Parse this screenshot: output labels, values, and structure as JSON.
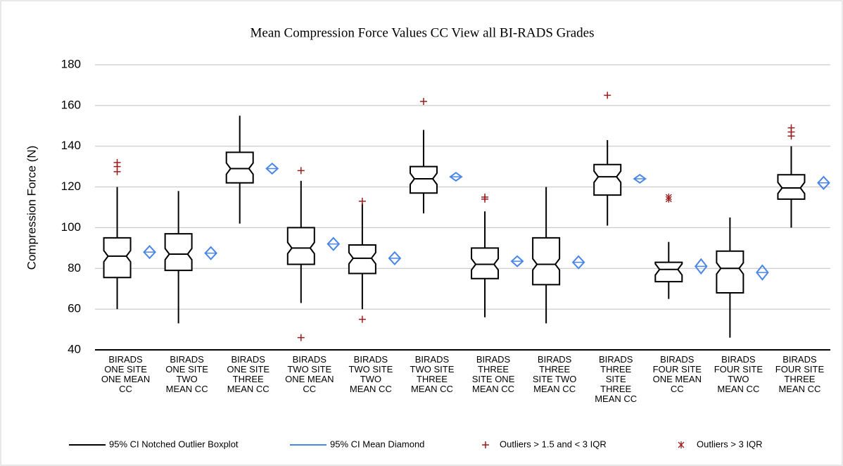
{
  "chart_data": {
    "type": "boxplot",
    "title": "Mean Compression Force Values CC View all BI-RADS Grades",
    "y_label": "Compression Force (N)",
    "categories": [
      "BIRADS ONE SITE ONE MEAN CC",
      "BIRADS ONE SITE TWO MEAN CC",
      "BIRADS ONE SITE THREE MEAN CC",
      "BIRADS TWO SITE ONE MEAN CC",
      "BIRADS TWO SITE TWO MEAN CC",
      "BIRADS TWO SITE THREE MEAN CC",
      "BIRADS THREE SITE ONE MEAN CC",
      "BIRADS THREE SITE TWO MEAN CC",
      "BIRADS THREE SITE THREE MEAN CC",
      "BIRADS FOUR SITE ONE MEAN CC",
      "BIRADS FOUR SITE TWO MEAN CC",
      "BIRADS FOUR SITE THREE MEAN CC"
    ],
    "boxes": [
      {
        "whisker_low": 60,
        "q1": 75.5,
        "median": 86,
        "q3": 95,
        "whisker_high": 120,
        "mean": 88,
        "mean_low": 85,
        "mean_high": 91,
        "outliers": [
          127.5,
          130,
          132
        ],
        "extreme_outliers": []
      },
      {
        "whisker_low": 53,
        "q1": 79,
        "median": 87,
        "q3": 97,
        "whisker_high": 118,
        "mean": 87.5,
        "mean_low": 84.5,
        "mean_high": 90.5,
        "outliers": [],
        "extreme_outliers": []
      },
      {
        "whisker_low": 102,
        "q1": 122,
        "median": 129,
        "q3": 137,
        "whisker_high": 155,
        "mean": 129,
        "mean_low": 126.5,
        "mean_high": 131.5,
        "outliers": [],
        "extreme_outliers": []
      },
      {
        "whisker_low": 63,
        "q1": 82,
        "median": 90,
        "q3": 100,
        "whisker_high": 123,
        "mean": 92,
        "mean_low": 89,
        "mean_high": 95,
        "outliers": [
          128,
          46
        ],
        "extreme_outliers": []
      },
      {
        "whisker_low": 60,
        "q1": 77.5,
        "median": 85,
        "q3": 91.5,
        "whisker_high": 112,
        "mean": 85,
        "mean_low": 82,
        "mean_high": 88,
        "outliers": [
          113,
          55
        ],
        "extreme_outliers": []
      },
      {
        "whisker_low": 107,
        "q1": 117,
        "median": 124,
        "q3": 130,
        "whisker_high": 148,
        "mean": 125,
        "mean_low": 123,
        "mean_high": 127,
        "outliers": [
          162
        ],
        "extreme_outliers": []
      },
      {
        "whisker_low": 56,
        "q1": 75,
        "median": 82,
        "q3": 90,
        "whisker_high": 108,
        "mean": 83.5,
        "mean_low": 81,
        "mean_high": 86,
        "outliers": [
          114,
          115
        ],
        "extreme_outliers": []
      },
      {
        "whisker_low": 53,
        "q1": 72,
        "median": 82,
        "q3": 95,
        "whisker_high": 120,
        "mean": 83,
        "mean_low": 80,
        "mean_high": 86,
        "outliers": [],
        "extreme_outliers": []
      },
      {
        "whisker_low": 101,
        "q1": 116,
        "median": 125,
        "q3": 131,
        "whisker_high": 143,
        "mean": 124,
        "mean_low": 122,
        "mean_high": 126,
        "outliers": [
          165
        ],
        "extreme_outliers": []
      },
      {
        "whisker_low": 65,
        "q1": 73.5,
        "median": 79.5,
        "q3": 83,
        "whisker_high": 93,
        "mean": 81,
        "mean_low": 77.5,
        "mean_high": 84.5,
        "outliers": [],
        "extreme_outliers": [
          114,
          115
        ]
      },
      {
        "whisker_low": 46,
        "q1": 68,
        "median": 80,
        "q3": 88.5,
        "whisker_high": 105,
        "mean": 78,
        "mean_low": 74.5,
        "mean_high": 81.5,
        "outliers": [],
        "extreme_outliers": []
      },
      {
        "whisker_low": 100,
        "q1": 114,
        "median": 119.5,
        "q3": 126,
        "whisker_high": 140,
        "mean": 122,
        "mean_low": 119,
        "mean_high": 125,
        "outliers": [
          145,
          147,
          149
        ],
        "extreme_outliers": []
      }
    ],
    "legend": [
      {
        "name": "95% CI Notched Outlier Boxplot",
        "color": "#000000"
      },
      {
        "name": "95% CI Mean Diamond",
        "color": "#4a86e8"
      },
      {
        "name": "Outliers > 1.5 and < 3 IQR",
        "color": "#9b1c1c"
      },
      {
        "name": "Outliers > 3 IQR",
        "color": "#9b1c1c"
      }
    ],
    "ylim": [
      40,
      180
    ],
    "yticks": [
      40,
      60,
      80,
      100,
      120,
      140,
      160,
      180
    ],
    "grid": true
  }
}
